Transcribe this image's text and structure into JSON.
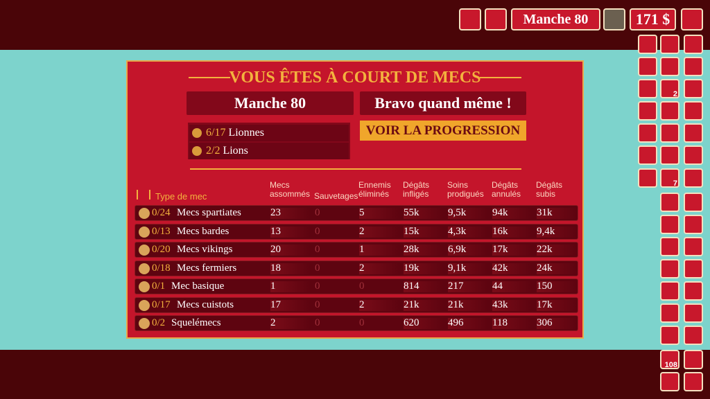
{
  "hud": {
    "round": "Manche 80",
    "money": "171 $"
  },
  "panel": {
    "title": "VOUS ÊTES À COURT DE MECS",
    "round": "Manche 80",
    "message": "Bravo quand même !",
    "button": "VOIR LA PROGRESSION",
    "enemies": [
      {
        "count": "6/17",
        "name": "Lionnes"
      },
      {
        "count": "2/2",
        "name": "Lions"
      }
    ]
  },
  "table": {
    "columns": [
      "Type de mec",
      "Mecs\nassommés",
      "Sauvetages",
      "Ennemis\néliminés",
      "Dégâts\ninfligés",
      "Soins\nprodigués",
      "Dégâts\nannulés",
      "Dégâts\nsubis"
    ],
    "rows": [
      {
        "count": "0/24",
        "name": "Mecs spartiates",
        "cells": [
          "23",
          "0",
          "5",
          "55k",
          "9,5k",
          "94k",
          "31k"
        ]
      },
      {
        "count": "0/13",
        "name": "Mecs bardes",
        "cells": [
          "13",
          "0",
          "2",
          "15k",
          "4,3k",
          "16k",
          "9,4k"
        ]
      },
      {
        "count": "0/20",
        "name": "Mecs vikings",
        "cells": [
          "20",
          "0",
          "1",
          "28k",
          "6,9k",
          "17k",
          "22k"
        ]
      },
      {
        "count": "0/18",
        "name": "Mecs fermiers",
        "cells": [
          "18",
          "0",
          "2",
          "19k",
          "9,1k",
          "42k",
          "24k"
        ]
      },
      {
        "count": "0/1",
        "name": "Mec basique",
        "cells": [
          "1",
          "0",
          "0",
          "814",
          "217",
          "44",
          "150"
        ]
      },
      {
        "count": "0/17",
        "name": "Mecs cuistots",
        "cells": [
          "17",
          "0",
          "2",
          "21k",
          "21k",
          "43k",
          "17k"
        ]
      },
      {
        "count": "0/2",
        "name": "Squelémecs",
        "cells": [
          "2",
          "0",
          "0",
          "620",
          "496",
          "118",
          "306"
        ]
      }
    ]
  },
  "sidebar": {
    "badges": [
      "2",
      "7",
      "108"
    ]
  }
}
